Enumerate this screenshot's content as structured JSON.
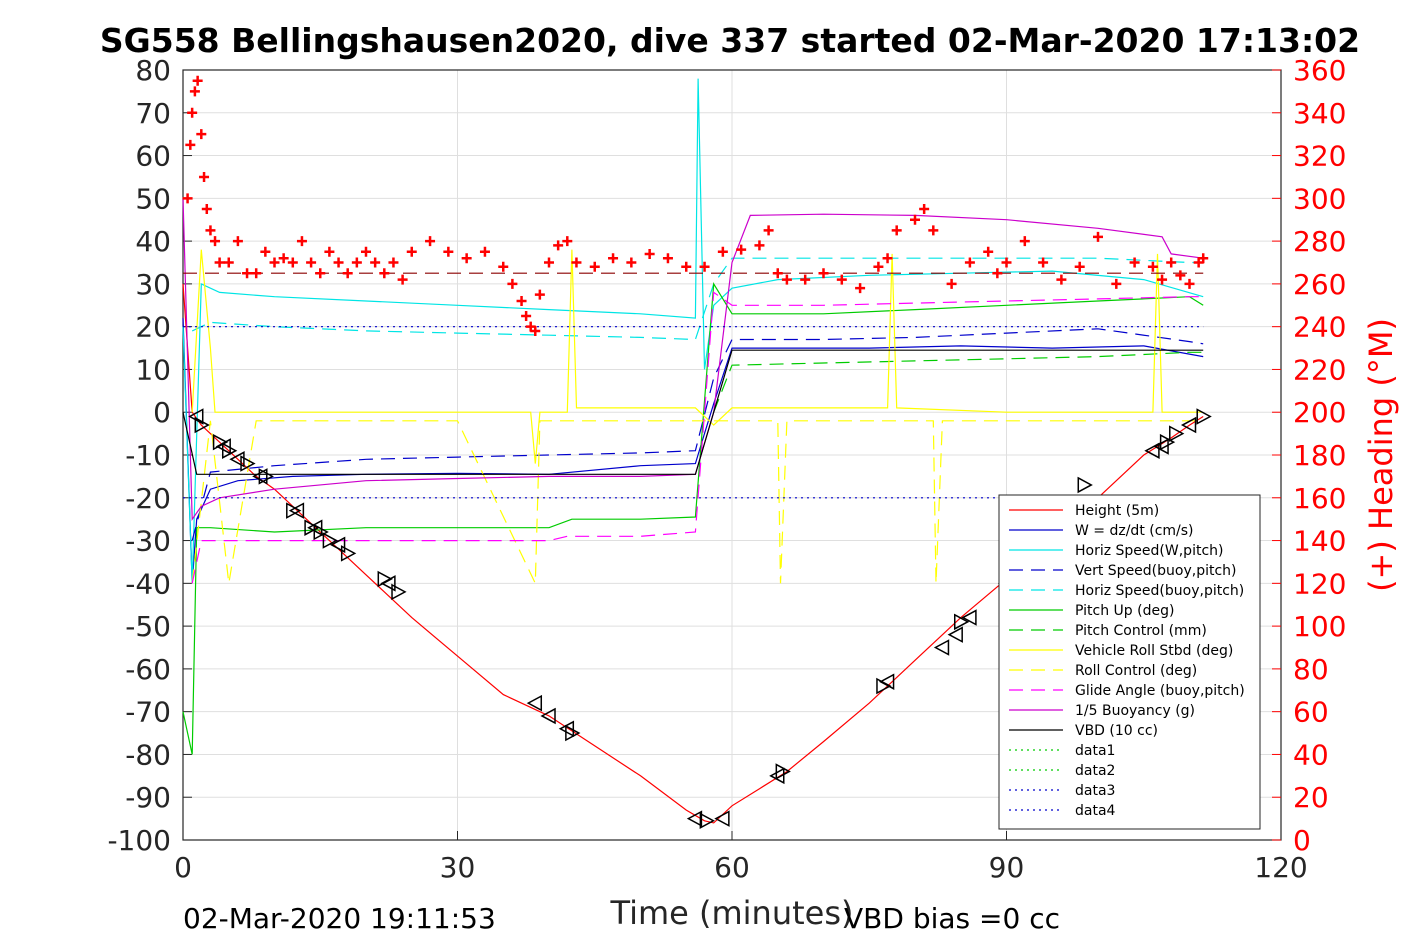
{
  "chart_data": {
    "type": "line",
    "title": "SG558 Bellingshausen2020, dive 337 started 02-Mar-2020 17:13:02",
    "xlabel": "Time (minutes)",
    "ylabel_right": "(+) Heading (°M)",
    "footer_left": "02-Mar-2020 19:11:53",
    "footer_right": "VBD bias =0 cc",
    "xlim": [
      0,
      120
    ],
    "ylim": [
      -100,
      80
    ],
    "ylim_right": [
      0,
      360
    ],
    "xticks": [
      "0",
      "30",
      "60",
      "90",
      "120"
    ],
    "yticks_left": [
      "80",
      "70",
      "60",
      "50",
      "40",
      "30",
      "20",
      "10",
      "0",
      "-10",
      "-20",
      "-30",
      "-40",
      "-50",
      "-60",
      "-70",
      "-80",
      "-90",
      "-100"
    ],
    "yticks_right": [
      "360",
      "340",
      "320",
      "300",
      "280",
      "260",
      "240",
      "220",
      "200",
      "180",
      "160",
      "140",
      "120",
      "100",
      "80",
      "60",
      "40",
      "20",
      "0"
    ],
    "grid": true,
    "legend_position": "lower-right",
    "colors": {
      "height": "#ff0000",
      "w": "#0000cc",
      "horiz_w": "#00e5e5",
      "vert_buoy": "#0000cc",
      "horiz_buoy": "#00e5e5",
      "pitch": "#00cc00",
      "pitch_ctrl": "#00cc00",
      "roll": "#ffff00",
      "roll_ctrl": "#ffff00",
      "glide": "#ff00ff",
      "buoy": "#cc00cc",
      "vbd": "#000000",
      "heading": "#ff0000",
      "markers": "#000000"
    },
    "series": [
      {
        "name": "Height (5m)",
        "style": "solid",
        "color": "#ff0000",
        "x": [
          0,
          1,
          2,
          4,
          6,
          8,
          10,
          13,
          16,
          20,
          25,
          30,
          35,
          40,
          45,
          50,
          55,
          57,
          58,
          60,
          63,
          66,
          70,
          75,
          80,
          85,
          90,
          95,
          100,
          105,
          108,
          110,
          111.5
        ],
        "y": [
          30,
          0,
          -3,
          -7,
          -11,
          -15,
          -18,
          -24,
          -30,
          -38,
          -48,
          -57,
          -66,
          -71,
          -78,
          -85,
          -93,
          -95.5,
          -96,
          -92,
          -88,
          -84,
          -77,
          -68,
          -58,
          -48,
          -39,
          -29,
          -20,
          -10,
          -6,
          -3,
          -1
        ]
      },
      {
        "name": "W = dz/dt (cm/s)",
        "style": "solid",
        "color": "#0000cc",
        "x": [
          0,
          1,
          1.5,
          3,
          6,
          12,
          20,
          30,
          40,
          50,
          56,
          57,
          58,
          60,
          65,
          75,
          85,
          95,
          105,
          111.5
        ],
        "y": [
          22,
          -40,
          -25,
          -18,
          -16,
          -15,
          -14.5,
          -14.3,
          -14.5,
          -12.5,
          -12,
          -5,
          2,
          15,
          15,
          15,
          15.5,
          15,
          15.5,
          13
        ]
      },
      {
        "name": "Horiz Speed(W,pitch)",
        "style": "solid",
        "color": "#00e5e5",
        "x": [
          0,
          1,
          2,
          4,
          10,
          20,
          30,
          40,
          50,
          56,
          56.3,
          57,
          58,
          60,
          65,
          75,
          85,
          95,
          105,
          111.5
        ],
        "y": [
          20,
          -40,
          30,
          28,
          27,
          26,
          25,
          24,
          23,
          22,
          78,
          10,
          25,
          29,
          31,
          32,
          32.5,
          33,
          31,
          27
        ]
      },
      {
        "name": "Vert Speed(buoy,pitch)",
        "style": "dashed",
        "color": "#0000cc",
        "x": [
          1,
          3,
          10,
          20,
          30,
          40,
          50,
          56,
          58,
          60,
          70,
          80,
          90,
          100,
          110,
          111.5
        ],
        "y": [
          -30,
          -14,
          -12.5,
          -11,
          -10.5,
          -10,
          -9.5,
          -9,
          8,
          17,
          17,
          17.5,
          18.5,
          19.5,
          16.5,
          16
        ]
      },
      {
        "name": "Horiz Speed(buoy,pitch)",
        "style": "dashed",
        "color": "#00e5e5",
        "x": [
          1,
          3,
          10,
          20,
          30,
          40,
          50,
          56,
          58,
          60,
          70,
          80,
          90,
          100,
          110,
          111.5
        ],
        "y": [
          19,
          21,
          20,
          19,
          18.5,
          18,
          17.5,
          17,
          30,
          36,
          36,
          36,
          36,
          36,
          35,
          35
        ]
      },
      {
        "name": "Pitch Up (deg)",
        "style": "solid",
        "color": "#00cc00",
        "x": [
          0,
          1,
          1.5,
          3,
          10,
          20,
          30,
          40,
          42.5,
          50,
          56,
          58,
          60,
          70,
          80,
          90,
          100,
          110,
          111.5
        ],
        "y": [
          -70,
          -80,
          -27,
          -27,
          -28,
          -27,
          -27,
          -27,
          -25,
          -25,
          -24.5,
          30,
          23,
          23,
          24,
          25,
          26,
          27,
          25
        ]
      },
      {
        "name": "Pitch Control (mm)",
        "style": "dashed",
        "color": "#00cc00",
        "x": [
          58,
          60,
          70,
          80,
          90,
          100,
          110,
          111.5
        ],
        "y": [
          0,
          11,
          11.5,
          12,
          12.5,
          13,
          14,
          14
        ]
      },
      {
        "name": "Vehicle Roll Stbd (deg)",
        "style": "solid",
        "color": "#ffff00",
        "x": [
          1,
          2,
          3,
          3.5,
          4,
          5,
          10,
          20,
          30,
          38,
          38.5,
          39,
          42,
          42.5,
          43,
          50,
          56,
          58,
          60,
          77,
          77.5,
          78,
          90,
          100,
          106,
          106.5,
          107,
          111.5
        ],
        "y": [
          0,
          38,
          15,
          0,
          0,
          0,
          0,
          0,
          0,
          0,
          -12,
          0,
          0,
          38,
          1,
          1,
          1,
          -3,
          1,
          1,
          37,
          1,
          0,
          0,
          0,
          37,
          0,
          0
        ]
      },
      {
        "name": "Roll Control (deg)",
        "style": "dashed",
        "color": "#ffff00",
        "x": [
          1,
          3,
          5,
          8,
          20,
          30,
          38.5,
          39,
          42,
          60,
          65,
          65.3,
          66,
          80,
          82,
          82.3,
          83,
          90,
          110,
          111.5
        ],
        "y": [
          -40,
          -2,
          -40,
          -2,
          -2,
          -2,
          -40,
          -2,
          -2,
          -2,
          -2,
          -40,
          -2,
          -2,
          -2,
          -40,
          -2,
          -2,
          -2,
          -2
        ]
      },
      {
        "name": "Glide Angle (buoy,pitch)",
        "style": "dashed",
        "color": "#ff00ff",
        "x": [
          1,
          2,
          5,
          10,
          20,
          30,
          40,
          42,
          50,
          56,
          58,
          60,
          70,
          80,
          90,
          100,
          110,
          111.5
        ],
        "y": [
          -40,
          -30,
          -30,
          -30,
          -30,
          -30,
          -30,
          -29,
          -29,
          -28,
          28,
          25,
          25,
          25.5,
          26,
          26.5,
          27,
          27
        ]
      },
      {
        "name": "1/5 Buoyancy (g)",
        "style": "solid",
        "color": "#cc00cc",
        "x": [
          0,
          1,
          2,
          4,
          10,
          20,
          30,
          40,
          50,
          56,
          58,
          60,
          62,
          70,
          80,
          90,
          100,
          107,
          108,
          111.5
        ],
        "y": [
          50,
          -25,
          -22,
          -20,
          -18,
          -16,
          -15.5,
          -15,
          -15,
          -14.5,
          0,
          35,
          46,
          46.3,
          46,
          45,
          43,
          41,
          37,
          36
        ]
      },
      {
        "name": "VBD (10 cc)",
        "style": "solid",
        "color": "#000000",
        "x": [
          0,
          1.5,
          10,
          20,
          30,
          40,
          50,
          56,
          58,
          60,
          70,
          80,
          90,
          100,
          110,
          111.5
        ],
        "y": [
          0,
          -14.5,
          -14.5,
          -14.5,
          -14.5,
          -14.5,
          -14.5,
          -14.5,
          0,
          14.5,
          14.5,
          14.5,
          14.5,
          14.5,
          14.5,
          14.5
        ]
      },
      {
        "name": "data1",
        "style": "dotted",
        "color": "#00cc00",
        "x": [],
        "y": []
      },
      {
        "name": "data2",
        "style": "dotted",
        "color": "#00cc00",
        "x": [],
        "y": []
      },
      {
        "name": "data3",
        "style": "dotted",
        "color": "#0000cc",
        "x": [
          0,
          111.5
        ],
        "y": [
          20,
          20
        ]
      },
      {
        "name": "data4",
        "style": "dotted",
        "color": "#0000cc",
        "x": [
          0,
          111.5
        ],
        "y": [
          -20,
          -20
        ]
      }
    ],
    "reference_lines": [
      {
        "style": "dashed",
        "color": "#8b0000",
        "axis": "right",
        "y": 265,
        "x": [
          0,
          111.5
        ]
      }
    ],
    "heading": {
      "axis": "right",
      "marker": "+",
      "color": "#ff0000",
      "x": [
        0.5,
        0.8,
        1,
        1.3,
        1.6,
        2,
        2.3,
        2.6,
        3,
        3.5,
        4,
        5,
        6,
        7,
        8,
        9,
        10,
        11,
        12,
        13,
        14,
        15,
        16,
        17,
        18,
        19,
        20,
        21,
        22,
        23,
        24,
        25,
        27,
        29,
        31,
        33,
        35,
        36,
        37,
        37.5,
        38,
        38.5,
        39,
        40,
        41,
        42,
        43,
        45,
        47,
        49,
        51,
        53,
        55,
        57,
        59,
        61,
        63,
        64,
        65,
        66,
        68,
        70,
        72,
        74,
        76,
        77,
        78,
        80,
        81,
        82,
        84,
        86,
        88,
        89,
        90,
        92,
        94,
        96,
        98,
        100,
        102,
        104,
        106,
        107,
        108,
        109,
        110,
        111,
        111.5
      ],
      "y": [
        300,
        325,
        340,
        350,
        355,
        330,
        310,
        295,
        285,
        280,
        270,
        270,
        280,
        265,
        265,
        275,
        270,
        272,
        270,
        280,
        270,
        265,
        275,
        270,
        265,
        270,
        275,
        270,
        265,
        270,
        262,
        275,
        280,
        275,
        272,
        275,
        268,
        260,
        252,
        245,
        240,
        238,
        255,
        270,
        278,
        280,
        270,
        268,
        272,
        270,
        274,
        272,
        268,
        268,
        275,
        276,
        278,
        285,
        265,
        262,
        262,
        265,
        262,
        258,
        268,
        272,
        285,
        290,
        295,
        285,
        260,
        270,
        275,
        265,
        270,
        280,
        270,
        262,
        268,
        282,
        260,
        270,
        268,
        262,
        270,
        264,
        260,
        270,
        272
      ]
    },
    "markers_right_triangle": [
      [
        2,
        -3
      ],
      [
        4,
        -7
      ],
      [
        5,
        -9
      ],
      [
        7,
        -12
      ],
      [
        9,
        -15
      ],
      [
        12,
        -23
      ],
      [
        14,
        -27
      ],
      [
        15,
        -28
      ],
      [
        16,
        -30
      ],
      [
        18,
        -33
      ],
      [
        22,
        -39
      ],
      [
        23.5,
        -42
      ],
      [
        42.5,
        -75
      ],
      [
        57.2,
        -95.5
      ],
      [
        65.5,
        -84
      ],
      [
        76.5,
        -64
      ],
      [
        85,
        -49
      ],
      [
        98.5,
        -17
      ],
      [
        107.5,
        -7
      ],
      [
        108.5,
        -5
      ],
      [
        111.5,
        -1
      ]
    ],
    "markers_left_triangle": [
      [
        1.5,
        -1
      ],
      [
        4.5,
        -8
      ],
      [
        6,
        -11
      ],
      [
        8.5,
        -15
      ],
      [
        12.5,
        -23
      ],
      [
        14.5,
        -27
      ],
      [
        17,
        -31
      ],
      [
        22.5,
        -40
      ],
      [
        38.5,
        -68
      ],
      [
        40,
        -71
      ],
      [
        42,
        -74
      ],
      [
        56,
        -95
      ],
      [
        59,
        -95
      ],
      [
        65,
        -85
      ],
      [
        77,
        -63
      ],
      [
        83,
        -55
      ],
      [
        84.5,
        -52
      ],
      [
        86,
        -48
      ],
      [
        90,
        -40
      ],
      [
        106,
        -9
      ],
      [
        107,
        -8
      ],
      [
        110,
        -3
      ]
    ]
  }
}
